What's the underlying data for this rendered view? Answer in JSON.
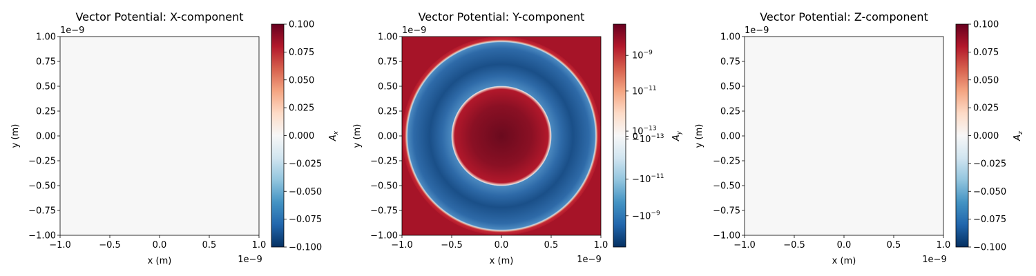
{
  "chart_data": [
    {
      "type": "heatmap",
      "title": "Vector Potential: X-component",
      "xlabel": "x (m)",
      "ylabel": "y (m)",
      "x_offset_text": "1e−9",
      "y_offset_text": "1e−9",
      "xlim": [
        -1.0,
        1.0
      ],
      "ylim": [
        -1.0,
        1.0
      ],
      "xticks": [
        "−1.0",
        "−0.5",
        "0.0",
        "0.5",
        "1.0"
      ],
      "xtick_values": [
        -1.0,
        -0.5,
        0.0,
        0.5,
        1.0
      ],
      "yticks": [
        "1.00",
        "0.75",
        "0.50",
        "0.25",
        "0.00",
        "−0.25",
        "−0.50",
        "−0.75",
        "−1.00"
      ],
      "ytick_values": [
        1.0,
        0.75,
        0.5,
        0.25,
        0.0,
        -0.25,
        -0.5,
        -0.75,
        -1.0
      ],
      "field": "uniform",
      "field_value": 0.0,
      "colorbar": {
        "label": "A_x",
        "label_base": "A",
        "label_sub": "x",
        "scale": "linear",
        "range": [
          -0.1,
          0.1
        ],
        "tick_values": [
          0.1,
          0.075,
          0.05,
          0.025,
          0.0,
          -0.025,
          -0.05,
          -0.075,
          -0.1
        ],
        "ticks": [
          "0.100",
          "0.075",
          "0.050",
          "0.025",
          "0.000",
          "−0.025",
          "−0.050",
          "−0.075",
          "−0.100"
        ]
      },
      "colormap": "RdBu_r"
    },
    {
      "type": "heatmap",
      "title": "Vector Potential: Y-component",
      "xlabel": "x (m)",
      "ylabel": "y (m)",
      "x_offset_text": "1e−9",
      "y_offset_text": "1e−9",
      "xlim": [
        -1.0,
        1.0
      ],
      "ylim": [
        -1.0,
        1.0
      ],
      "xticks": [
        "−1.0",
        "−0.5",
        "0.0",
        "0.5",
        "1.0"
      ],
      "xtick_values": [
        -1.0,
        -0.5,
        0.0,
        0.5,
        1.0
      ],
      "yticks": [
        "1.00",
        "0.75",
        "0.50",
        "0.25",
        "0.00",
        "−0.25",
        "−0.50",
        "−0.75",
        "−1.00"
      ],
      "ytick_values": [
        1.0,
        0.75,
        0.5,
        0.25,
        0.0,
        -0.25,
        -0.5,
        -0.75,
        -1.0
      ],
      "field": "rings",
      "regions": [
        {
          "shape": "disk",
          "r_max": 0.5,
          "value": "positive, strongest near center"
        },
        {
          "shape": "annulus",
          "r_min": 0.5,
          "r_max": 0.95,
          "value": "negative, strongest near r = 0.72"
        },
        {
          "shape": "outside",
          "r_min": 0.95,
          "value": "positive"
        }
      ],
      "colorbar": {
        "label": "A_y",
        "label_base": "A",
        "label_sub": "y",
        "scale": "symlog",
        "ticks_major": [
          {
            "base": "10",
            "exp": "−9",
            "prefix": ""
          },
          {
            "base": "10",
            "exp": "−11",
            "prefix": ""
          },
          {
            "base": "10",
            "exp": "−13",
            "prefix": ""
          },
          {
            "base": "10",
            "exp": "−13",
            "prefix": "−"
          },
          {
            "base": "10",
            "exp": "−11",
            "prefix": "−"
          },
          {
            "base": "10",
            "exp": "−9",
            "prefix": "−"
          }
        ],
        "ticks_extra": [
          "0"
        ]
      },
      "colormap": "RdBu_r"
    },
    {
      "type": "heatmap",
      "title": "Vector Potential: Z-component",
      "xlabel": "x (m)",
      "ylabel": "y (m)",
      "x_offset_text": "1e−9",
      "y_offset_text": "1e−9",
      "xlim": [
        -1.0,
        1.0
      ],
      "ylim": [
        -1.0,
        1.0
      ],
      "xticks": [
        "−1.0",
        "−0.5",
        "0.0",
        "0.5",
        "1.0"
      ],
      "xtick_values": [
        -1.0,
        -0.5,
        0.0,
        0.5,
        1.0
      ],
      "yticks": [
        "1.00",
        "0.75",
        "0.50",
        "0.25",
        "0.00",
        "−0.25",
        "−0.50",
        "−0.75",
        "−1.00"
      ],
      "ytick_values": [
        1.0,
        0.75,
        0.5,
        0.25,
        0.0,
        -0.25,
        -0.5,
        -0.75,
        -1.0
      ],
      "field": "uniform",
      "field_value": 0.0,
      "colorbar": {
        "label": "A_z",
        "label_base": "A",
        "label_sub": "z",
        "scale": "linear",
        "range": [
          -0.1,
          0.1
        ],
        "tick_values": [
          0.1,
          0.075,
          0.05,
          0.025,
          0.0,
          -0.025,
          -0.05,
          -0.075,
          -0.1
        ],
        "ticks": [
          "0.100",
          "0.075",
          "0.050",
          "0.025",
          "0.000",
          "−0.025",
          "−0.050",
          "−0.075",
          "−0.100"
        ]
      },
      "colormap": "RdBu_r"
    }
  ],
  "colors": {
    "neutral": "#f7f7f7",
    "deep_red": "#6a0a1e",
    "red": "#b2182b",
    "light_red": "#f4a582",
    "deep_blue": "#0a3162",
    "blue": "#2166ac",
    "mid_blue": "#4a88bf",
    "light_blue": "#92c5de"
  }
}
